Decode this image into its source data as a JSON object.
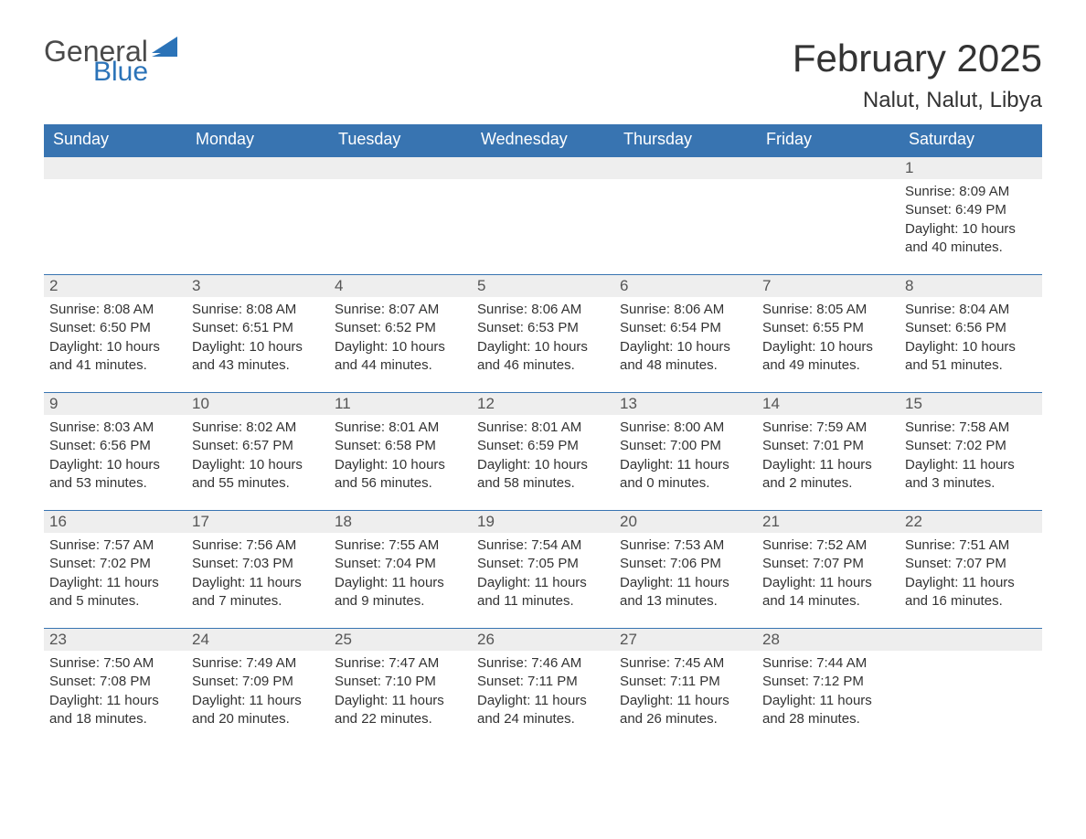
{
  "logo": {
    "text1": "General",
    "text2": "Blue",
    "text1_color": "#4a4a4a",
    "text2_color": "#2b73b8",
    "flag_color": "#2b73b8"
  },
  "header": {
    "month_title": "February 2025",
    "location": "Nalut, Nalut, Libya"
  },
  "colors": {
    "header_bg": "#3874b1",
    "header_text": "#ffffff",
    "daynum_bg": "#eeeeee",
    "week_border": "#3874b1",
    "body_text": "#333333",
    "page_bg": "#ffffff"
  },
  "day_headers": [
    "Sunday",
    "Monday",
    "Tuesday",
    "Wednesday",
    "Thursday",
    "Friday",
    "Saturday"
  ],
  "weeks": [
    [
      {
        "num": "",
        "lines": []
      },
      {
        "num": "",
        "lines": []
      },
      {
        "num": "",
        "lines": []
      },
      {
        "num": "",
        "lines": []
      },
      {
        "num": "",
        "lines": []
      },
      {
        "num": "",
        "lines": []
      },
      {
        "num": "1",
        "lines": [
          "Sunrise: 8:09 AM",
          "Sunset: 6:49 PM",
          "Daylight: 10 hours and 40 minutes."
        ]
      }
    ],
    [
      {
        "num": "2",
        "lines": [
          "Sunrise: 8:08 AM",
          "Sunset: 6:50 PM",
          "Daylight: 10 hours and 41 minutes."
        ]
      },
      {
        "num": "3",
        "lines": [
          "Sunrise: 8:08 AM",
          "Sunset: 6:51 PM",
          "Daylight: 10 hours and 43 minutes."
        ]
      },
      {
        "num": "4",
        "lines": [
          "Sunrise: 8:07 AM",
          "Sunset: 6:52 PM",
          "Daylight: 10 hours and 44 minutes."
        ]
      },
      {
        "num": "5",
        "lines": [
          "Sunrise: 8:06 AM",
          "Sunset: 6:53 PM",
          "Daylight: 10 hours and 46 minutes."
        ]
      },
      {
        "num": "6",
        "lines": [
          "Sunrise: 8:06 AM",
          "Sunset: 6:54 PM",
          "Daylight: 10 hours and 48 minutes."
        ]
      },
      {
        "num": "7",
        "lines": [
          "Sunrise: 8:05 AM",
          "Sunset: 6:55 PM",
          "Daylight: 10 hours and 49 minutes."
        ]
      },
      {
        "num": "8",
        "lines": [
          "Sunrise: 8:04 AM",
          "Sunset: 6:56 PM",
          "Daylight: 10 hours and 51 minutes."
        ]
      }
    ],
    [
      {
        "num": "9",
        "lines": [
          "Sunrise: 8:03 AM",
          "Sunset: 6:56 PM",
          "Daylight: 10 hours and 53 minutes."
        ]
      },
      {
        "num": "10",
        "lines": [
          "Sunrise: 8:02 AM",
          "Sunset: 6:57 PM",
          "Daylight: 10 hours and 55 minutes."
        ]
      },
      {
        "num": "11",
        "lines": [
          "Sunrise: 8:01 AM",
          "Sunset: 6:58 PM",
          "Daylight: 10 hours and 56 minutes."
        ]
      },
      {
        "num": "12",
        "lines": [
          "Sunrise: 8:01 AM",
          "Sunset: 6:59 PM",
          "Daylight: 10 hours and 58 minutes."
        ]
      },
      {
        "num": "13",
        "lines": [
          "Sunrise: 8:00 AM",
          "Sunset: 7:00 PM",
          "Daylight: 11 hours and 0 minutes."
        ]
      },
      {
        "num": "14",
        "lines": [
          "Sunrise: 7:59 AM",
          "Sunset: 7:01 PM",
          "Daylight: 11 hours and 2 minutes."
        ]
      },
      {
        "num": "15",
        "lines": [
          "Sunrise: 7:58 AM",
          "Sunset: 7:02 PM",
          "Daylight: 11 hours and 3 minutes."
        ]
      }
    ],
    [
      {
        "num": "16",
        "lines": [
          "Sunrise: 7:57 AM",
          "Sunset: 7:02 PM",
          "Daylight: 11 hours and 5 minutes."
        ]
      },
      {
        "num": "17",
        "lines": [
          "Sunrise: 7:56 AM",
          "Sunset: 7:03 PM",
          "Daylight: 11 hours and 7 minutes."
        ]
      },
      {
        "num": "18",
        "lines": [
          "Sunrise: 7:55 AM",
          "Sunset: 7:04 PM",
          "Daylight: 11 hours and 9 minutes."
        ]
      },
      {
        "num": "19",
        "lines": [
          "Sunrise: 7:54 AM",
          "Sunset: 7:05 PM",
          "Daylight: 11 hours and 11 minutes."
        ]
      },
      {
        "num": "20",
        "lines": [
          "Sunrise: 7:53 AM",
          "Sunset: 7:06 PM",
          "Daylight: 11 hours and 13 minutes."
        ]
      },
      {
        "num": "21",
        "lines": [
          "Sunrise: 7:52 AM",
          "Sunset: 7:07 PM",
          "Daylight: 11 hours and 14 minutes."
        ]
      },
      {
        "num": "22",
        "lines": [
          "Sunrise: 7:51 AM",
          "Sunset: 7:07 PM",
          "Daylight: 11 hours and 16 minutes."
        ]
      }
    ],
    [
      {
        "num": "23",
        "lines": [
          "Sunrise: 7:50 AM",
          "Sunset: 7:08 PM",
          "Daylight: 11 hours and 18 minutes."
        ]
      },
      {
        "num": "24",
        "lines": [
          "Sunrise: 7:49 AM",
          "Sunset: 7:09 PM",
          "Daylight: 11 hours and 20 minutes."
        ]
      },
      {
        "num": "25",
        "lines": [
          "Sunrise: 7:47 AM",
          "Sunset: 7:10 PM",
          "Daylight: 11 hours and 22 minutes."
        ]
      },
      {
        "num": "26",
        "lines": [
          "Sunrise: 7:46 AM",
          "Sunset: 7:11 PM",
          "Daylight: 11 hours and 24 minutes."
        ]
      },
      {
        "num": "27",
        "lines": [
          "Sunrise: 7:45 AM",
          "Sunset: 7:11 PM",
          "Daylight: 11 hours and 26 minutes."
        ]
      },
      {
        "num": "28",
        "lines": [
          "Sunrise: 7:44 AM",
          "Sunset: 7:12 PM",
          "Daylight: 11 hours and 28 minutes."
        ]
      },
      {
        "num": "",
        "lines": []
      }
    ]
  ]
}
